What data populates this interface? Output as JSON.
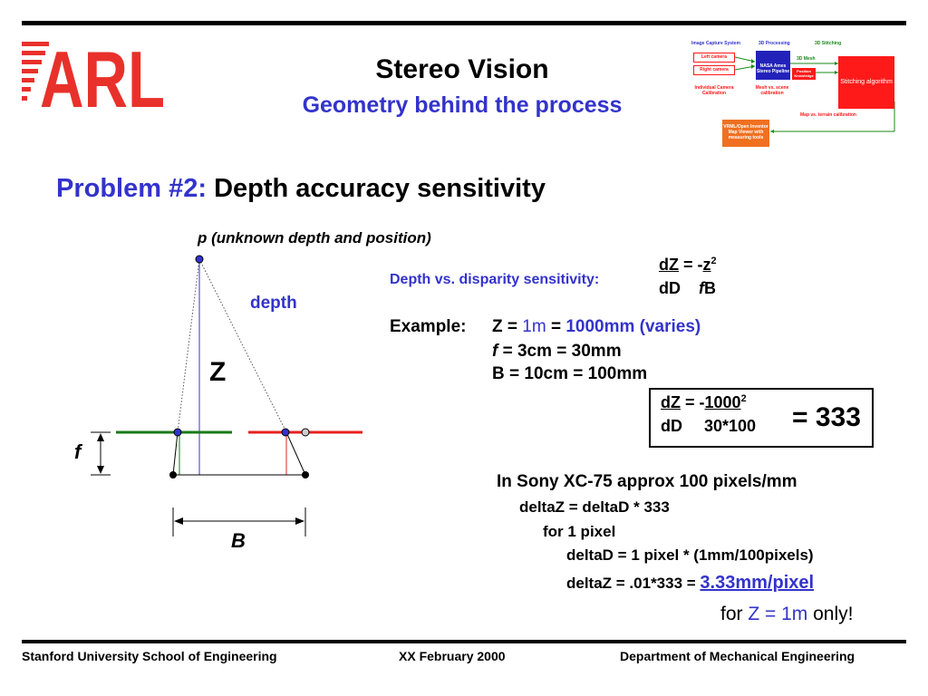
{
  "header": {
    "logo_text": "ARL",
    "title": "Stereo Vision",
    "subtitle": "Geometry behind the process"
  },
  "flow_diagram": {
    "col_capture": "Image Capture System",
    "col_processing": "3D Processing",
    "col_stitching": "3D Stitching",
    "left_camera": "Left camera",
    "right_camera": "Right camera",
    "nasa_pipeline": "NASA Ames Stereo Pipeline",
    "mesh_label": "3D Mesh",
    "position_knowledge": "Position Knowledge",
    "stitching_algorithm": "Stitching algorithm",
    "camera_calibration": "Individual Camera Calibration",
    "mesh_calibration": "Mesh vs. scene calibration",
    "terrain_calibration": "Map vs. terrain calibration",
    "vrml_viewer": "VRML/Open Inventor Map Viewer with measuring tools"
  },
  "problem": {
    "prefix": "Problem #2:",
    "title": "Depth accuracy sensitivity"
  },
  "geometry_diagram": {
    "point_label": "p (unknown depth and position)",
    "depth_label": "depth",
    "z_label": "Z",
    "f_label": "f",
    "b_label": "B"
  },
  "formula": {
    "label": "Depth vs. disparity sensitivity:",
    "num_left": "dZ",
    "eq": " = -",
    "num_right": "z",
    "num_exp": "2",
    "den_left": "dD",
    "den_f": "f",
    "den_b": "B"
  },
  "example": {
    "label": "Example:",
    "z_prefix": "Z = ",
    "z_val": "1m",
    "z_eq": " = ",
    "z_mm": "1000mm (varies)",
    "f_var": "f",
    "f_rest": " = 3cm = 30mm",
    "b_line": "B = 10cm = 100mm"
  },
  "calc": {
    "num_left": "dZ",
    "eq": " = -",
    "num_right": "1000",
    "num_exp": "2",
    "den_left": "dD",
    "den_right": "30*100",
    "result": "= 333"
  },
  "sony": {
    "line1": "In Sony XC-75 approx 100 pixels/mm",
    "line2": "deltaZ = deltaD * 333",
    "line3": "for 1 pixel",
    "line4": "deltaD = 1 pixel * (1mm/100pixels)",
    "line5_prefix": "deltaZ = .01*333 = ",
    "line5_result": "3.33mm/pixel",
    "line6_for": "for ",
    "line6_z": "Z = 1m",
    "line6_only": " only!"
  },
  "footer": {
    "left": "Stanford University School of Engineering",
    "center": "XX February 2000",
    "right": "Department of Mechanical Engineering"
  },
  "colors": {
    "logo_red": "#e8312a",
    "title_blue": "#3333cc",
    "left_line_green": "#1a7a1a",
    "right_line_red": "#e82020",
    "camera_red_box": "#ff1a1a",
    "nasa_blue_box": "#2222bb",
    "viewer_orange": "#f07020"
  }
}
